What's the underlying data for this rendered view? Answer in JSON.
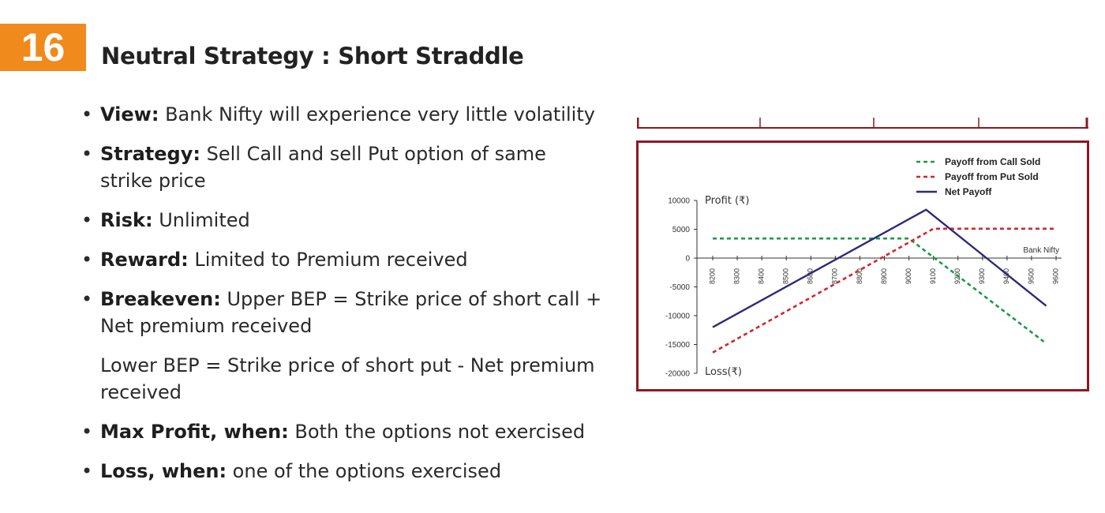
{
  "header": {
    "number": "16",
    "title": "Neutral Strategy : Short Straddle"
  },
  "points": [
    {
      "label": "View:",
      "text": " Bank Nifty will experience very little volatility"
    },
    {
      "label": "Strategy:",
      "text": " Sell Call and sell Put option of same strike price"
    },
    {
      "label": "Risk:",
      "text": " Unlimited"
    },
    {
      "label": "Reward:",
      "text": " Limited to Premium received"
    },
    {
      "label": "Breakeven:",
      "text": " Upper BEP = Strike price of short call + Net premium received"
    }
  ],
  "lower_bep": "Lower BEP = Strike price of short put - Net premium received",
  "points2": [
    {
      "label": "Max Profit, when:",
      "text": " Both the options not exercised"
    },
    {
      "label": "Loss, when:",
      "text": " one of the options exercised"
    }
  ],
  "colors": {
    "badge": "#f08a1c",
    "frame": "#8b1a22",
    "call": "#1a9a4a",
    "put": "#d0262d",
    "net": "#2e2a78"
  },
  "chart_data": {
    "type": "line",
    "ylabel_top": "Profit (₹)",
    "ylabel_bottom": "Loss(₹)",
    "xlabel": "Bank Nifty",
    "x_ticks": [
      "8200",
      "8300",
      "8400",
      "8500",
      "8600",
      "8700",
      "8800",
      "8900",
      "9000",
      "9100",
      "9200",
      "9300",
      "9400",
      "9500",
      "9600"
    ],
    "y_ticks": [
      "10000",
      "5000",
      "0",
      "-5000",
      "-10000",
      "-15000",
      "-20000"
    ],
    "xlim": [
      8200,
      9600
    ],
    "ylim": [
      -20000,
      10000
    ],
    "series": [
      {
        "name": "Payoff from Call Sold",
        "color": "#1a9a4a",
        "dash": true,
        "points": [
          [
            8200,
            3400
          ],
          [
            9000,
            3400
          ],
          [
            9550,
            -14500
          ]
        ]
      },
      {
        "name": "Payoff from Put Sold",
        "color": "#d0262d",
        "dash": true,
        "points": [
          [
            8200,
            -16400
          ],
          [
            9100,
            5100
          ],
          [
            9600,
            5100
          ]
        ]
      },
      {
        "name": "Net Payoff",
        "color": "#2e2a78",
        "dash": false,
        "points": [
          [
            8200,
            -12000
          ],
          [
            9070,
            8400
          ],
          [
            9560,
            -8300
          ]
        ]
      }
    ]
  }
}
